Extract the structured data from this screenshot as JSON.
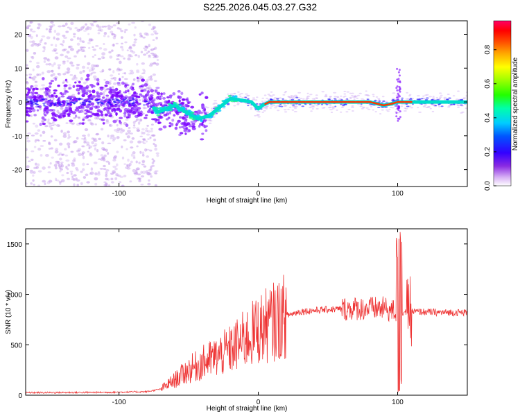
{
  "title": "S225.2026.045.03.27.G32",
  "chart_data": [
    {
      "type": "heatmap",
      "xlabel": "Height of straight line (km)",
      "ylabel": "Frequency (Hz)",
      "xlim": [
        -167,
        150
      ],
      "ylim": [
        -25,
        24
      ],
      "xticks": [
        "-100",
        "0",
        "100"
      ],
      "yticks": [
        "20",
        "10",
        "0",
        "-10",
        "-20"
      ],
      "colorbar": {
        "label": "Normalized spectral amplitude",
        "range": [
          0,
          0.97
        ],
        "ticks": [
          "0.0",
          "0.2",
          "0.4",
          "0.6",
          "0.8"
        ],
        "colors": [
          "#ffffff",
          "#d9b3f5",
          "#7b00ff",
          "#0000ff",
          "#00ffff",
          "#00ff00",
          "#ffff00",
          "#ff8000",
          "#ff0000",
          "#ff0080"
        ]
      },
      "ridge": [
        [
          -167,
          0
        ],
        [
          -110,
          0
        ],
        [
          -80,
          0
        ],
        [
          -72,
          -3
        ],
        [
          -60,
          -1
        ],
        [
          -52,
          -3
        ],
        [
          -43,
          -5
        ],
        [
          -35,
          -4
        ],
        [
          -20,
          1
        ],
        [
          -12,
          0.5
        ],
        [
          -5,
          0
        ],
        [
          0,
          -2
        ],
        [
          3,
          -1
        ],
        [
          8,
          0
        ],
        [
          20,
          0
        ],
        [
          40,
          0
        ],
        [
          60,
          0
        ],
        [
          70,
          0
        ],
        [
          80,
          0
        ],
        [
          90,
          -1
        ],
        [
          96,
          -0.5
        ],
        [
          100,
          0
        ],
        [
          110,
          0
        ],
        [
          130,
          0
        ],
        [
          150,
          0
        ]
      ],
      "grid": false
    },
    {
      "type": "line",
      "xlabel": "Height of straight line (km)",
      "ylabel": "SNR (10 * v/v)",
      "xlim": [
        -167,
        150
      ],
      "ylim": [
        0,
        1650
      ],
      "xticks": [
        "-100",
        "0",
        "100"
      ],
      "yticks": [
        "0",
        "500",
        "1000",
        "1500"
      ],
      "color": "#ee3333",
      "trend": [
        [
          -167,
          25
        ],
        [
          -110,
          28
        ],
        [
          -80,
          35
        ],
        [
          -70,
          60
        ],
        [
          -60,
          150
        ],
        [
          -50,
          250
        ],
        [
          -40,
          320
        ],
        [
          -30,
          380
        ],
        [
          -20,
          450
        ],
        [
          -10,
          550
        ],
        [
          0,
          650
        ],
        [
          10,
          720
        ],
        [
          20,
          790
        ],
        [
          30,
          830
        ],
        [
          50,
          850
        ],
        [
          70,
          860
        ],
        [
          90,
          860
        ],
        [
          100,
          820
        ],
        [
          110,
          830
        ],
        [
          130,
          820
        ],
        [
          150,
          820
        ]
      ],
      "spike": {
        "x": [
          99,
          103
        ],
        "max": 1650,
        "min": 20
      },
      "grid": false
    }
  ]
}
